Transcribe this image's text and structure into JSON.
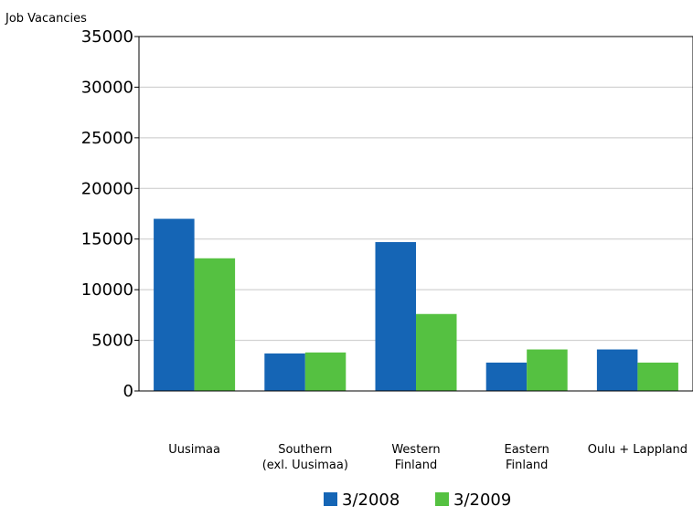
{
  "chart_data": {
    "type": "bar",
    "ylabel": "Job Vacancies",
    "xlabel": "",
    "title": "",
    "ylim": [
      0,
      35000
    ],
    "yticks": [
      0,
      5000,
      10000,
      15000,
      20000,
      25000,
      30000,
      35000
    ],
    "grid": true,
    "legend_position": "bottom",
    "categories": [
      [
        "Uusimaa"
      ],
      [
        "Southern",
        "(exl. Uusimaa)"
      ],
      [
        "Western",
        "Finland"
      ],
      [
        "Eastern",
        "Finland"
      ],
      [
        "Oulu + Lappland"
      ]
    ],
    "series": [
      {
        "name": "3/2008",
        "color": "#1565b5",
        "values": [
          17000,
          3700,
          14700,
          2800,
          4100
        ]
      },
      {
        "name": "3/2009",
        "color": "#55c141",
        "values": [
          13100,
          3800,
          7600,
          4100,
          2800
        ]
      }
    ]
  }
}
